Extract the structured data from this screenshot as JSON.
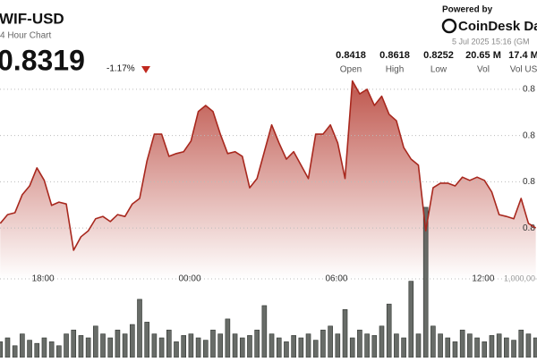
{
  "header": {
    "title": "WIF-USD",
    "subtitle": "4 Hour Chart",
    "price": "0.8319",
    "change": "-1.17%",
    "powered_by": "Powered by",
    "brand": "CoinDesk Dat",
    "timestamp": "5 Jul 2025 15:16 (GM"
  },
  "stats": [
    {
      "value": "0.8418",
      "label": "Open"
    },
    {
      "value": "0.8618",
      "label": "High"
    },
    {
      "value": "0.8252",
      "label": "Low"
    },
    {
      "value": "20.65 M",
      "label": "Vol"
    },
    {
      "value": "17.4 M",
      "label": "Vol US"
    }
  ],
  "chart_data": [
    {
      "type": "line",
      "color": "#a8281e",
      "grid": true,
      "x": [
        16.25,
        16.55,
        16.85,
        17.15,
        17.45,
        17.75,
        18.05,
        18.35,
        18.65,
        18.95,
        19.25,
        19.55,
        19.85,
        20.15,
        20.45,
        20.75,
        21.05,
        21.35,
        21.65,
        21.95,
        22.25,
        22.55,
        22.85,
        23.15,
        23.45,
        23.75,
        24.05,
        24.35,
        24.65,
        24.95,
        25.25,
        25.55,
        25.85,
        26.15,
        26.45,
        26.75,
        27.05,
        27.35,
        27.65,
        27.95,
        28.25,
        28.55,
        28.85,
        29.15,
        29.45,
        29.75,
        30.05,
        30.35,
        30.65,
        30.95,
        31.25,
        31.55,
        31.85,
        32.15,
        32.45,
        32.75,
        33.05,
        33.35,
        33.65,
        33.95,
        34.25,
        34.55,
        34.85,
        35.15,
        35.45,
        35.75,
        36.05,
        36.35,
        36.65,
        36.95,
        37.25,
        37.55,
        37.85,
        38.15
      ],
      "values": [
        0.831,
        0.8329,
        0.8333,
        0.8372,
        0.8391,
        0.843,
        0.8403,
        0.8349,
        0.8356,
        0.8352,
        0.8252,
        0.8281,
        0.8294,
        0.832,
        0.8325,
        0.8314,
        0.8329,
        0.8325,
        0.8352,
        0.8364,
        0.8445,
        0.8503,
        0.8503,
        0.8455,
        0.8461,
        0.8465,
        0.8488,
        0.8552,
        0.8565,
        0.8552,
        0.8503,
        0.8461,
        0.8465,
        0.8455,
        0.8387,
        0.8407,
        0.8465,
        0.8523,
        0.8484,
        0.8449,
        0.8465,
        0.8436,
        0.8407,
        0.8503,
        0.8503,
        0.8523,
        0.8484,
        0.8407,
        0.8618,
        0.859,
        0.86,
        0.8565,
        0.8585,
        0.8546,
        0.8532,
        0.8474,
        0.8449,
        0.8436,
        0.8294,
        0.8387,
        0.8397,
        0.8397,
        0.8391,
        0.841,
        0.8403,
        0.841,
        0.8403,
        0.8378,
        0.8329,
        0.8325,
        0.832,
        0.8364,
        0.831,
        0.83
      ],
      "xlim": [
        16.24,
        38.2
      ],
      "xticks": [
        {
          "value": 18,
          "label": "18:00"
        },
        {
          "value": 24,
          "label": "00:00"
        },
        {
          "value": 30,
          "label": "06:00"
        },
        {
          "value": 36,
          "label": "12:00"
        }
      ],
      "ylim": [
        0.802,
        0.8793
      ],
      "yticks": [
        {
          "value": 0.86,
          "label": "0.8"
        },
        {
          "value": 0.85,
          "label": "0.8"
        },
        {
          "value": 0.84,
          "label": "0.8"
        },
        {
          "value": 0.83,
          "label": "0.8"
        }
      ]
    },
    {
      "type": "bar",
      "color": "#4d524d",
      "values": [
        200000,
        250000,
        150000,
        300000,
        220000,
        180000,
        250000,
        200000,
        150000,
        300000,
        350000,
        280000,
        250000,
        400000,
        300000,
        250000,
        350000,
        300000,
        420000,
        740000,
        450000,
        300000,
        250000,
        350000,
        200000,
        280000,
        300000,
        250000,
        220000,
        350000,
        300000,
        490000,
        300000,
        250000,
        280000,
        350000,
        660000,
        300000,
        250000,
        200000,
        280000,
        250000,
        300000,
        220000,
        350000,
        400000,
        300000,
        610000,
        250000,
        350000,
        300000,
        280000,
        400000,
        680000,
        300000,
        250000,
        970000,
        300000,
        1910000,
        400000,
        300000,
        250000,
        200000,
        350000,
        300000,
        250000,
        200000,
        280000,
        300000,
        250000,
        220000,
        350000,
        300000,
        250000
      ],
      "ylim": [
        0,
        2000000
      ],
      "yticks": [
        {
          "value": 1000000,
          "label": "1,000,00"
        }
      ]
    }
  ]
}
